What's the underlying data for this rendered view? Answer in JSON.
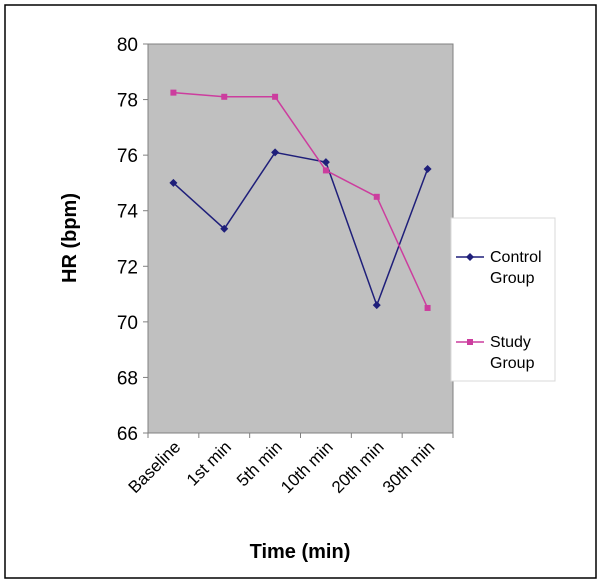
{
  "chart_data": {
    "type": "line",
    "xlabel": "Time (min)",
    "ylabel": "HR (bpm)",
    "categories": [
      "Baseline",
      "1st min",
      "5th min",
      "10th min",
      "20th min",
      "30th min"
    ],
    "ylim": [
      66,
      80
    ],
    "yticks": [
      66,
      68,
      70,
      72,
      74,
      76,
      78,
      80
    ],
    "grid": false,
    "legend_position": "right",
    "plot_background": "#c0c0c0",
    "series": [
      {
        "name": "Control Group",
        "values": [
          75.0,
          73.35,
          76.1,
          75.75,
          70.6,
          75.5
        ],
        "color": "#1f1f7a",
        "marker": "diamond"
      },
      {
        "name": "Study Group",
        "values": [
          78.25,
          78.1,
          78.1,
          75.45,
          74.5,
          70.5
        ],
        "color": "#cc3d9e",
        "marker": "square"
      }
    ]
  }
}
